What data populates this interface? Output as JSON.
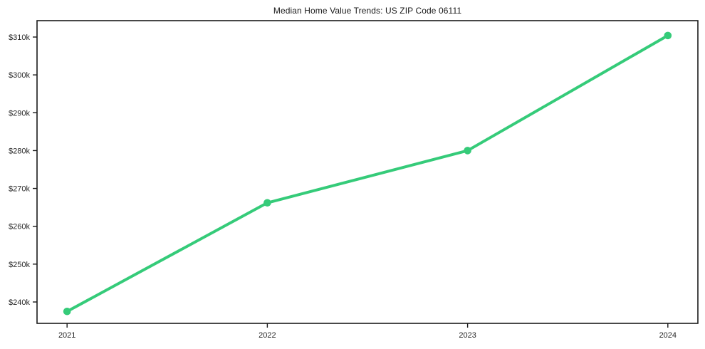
{
  "chart_data": {
    "type": "line",
    "title": "Median Home Value Trends: US ZIP Code 06111",
    "series_name": "Median Home Value",
    "x": [
      2021,
      2022,
      2023,
      2024
    ],
    "values": [
      237500,
      266200,
      280000,
      310400
    ],
    "xtick_labels": [
      "2021",
      "2022",
      "2023",
      "2024"
    ],
    "yticks": [
      240000,
      250000,
      260000,
      270000,
      280000,
      290000,
      300000,
      310000
    ],
    "ytick_labels": [
      "$240k",
      "$250k",
      "$260k",
      "$270k",
      "$280k",
      "$290k",
      "$300k",
      "$310k"
    ],
    "xlim": [
      2020.85,
      2024.15
    ],
    "ylim": [
      234350,
      314330
    ],
    "xlabel": "",
    "ylabel": "",
    "grid": false,
    "legend": false,
    "line_color": "#35cb79",
    "marker": "circle",
    "axis_color": "#1a1a1a",
    "tick_label_color": "#262626"
  }
}
